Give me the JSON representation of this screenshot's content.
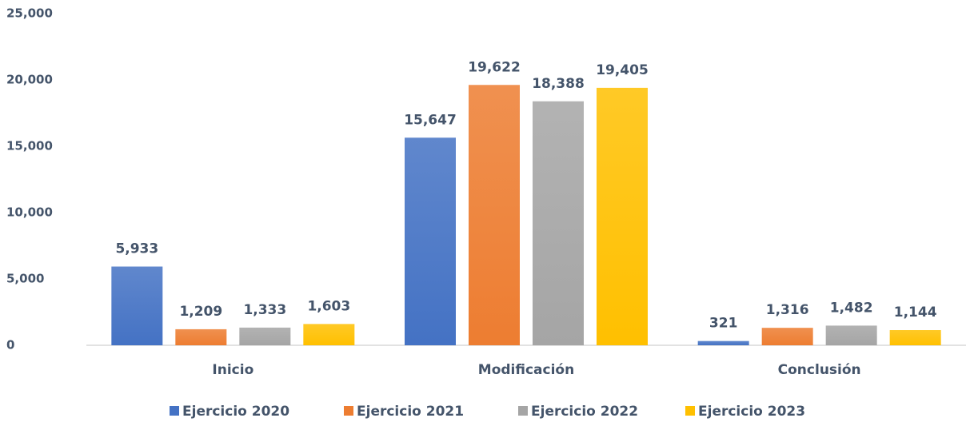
{
  "chart_data": {
    "type": "bar",
    "categories": [
      "Inicio",
      "Modificación",
      "Conclusión"
    ],
    "series": [
      {
        "name": "Ejercicio 2020",
        "color": "#4472c4",
        "values": [
          5933,
          15647,
          321
        ],
        "value_labels": [
          "5,933",
          "15,647",
          "321"
        ]
      },
      {
        "name": "Ejercicio 2021",
        "color": "#ed7d31",
        "values": [
          1209,
          19622,
          1316
        ],
        "value_labels": [
          "1,209",
          "19,622",
          "1,316"
        ]
      },
      {
        "name": "Ejercicio 2022",
        "color": "#a5a5a5",
        "values": [
          1333,
          18388,
          1482
        ],
        "value_labels": [
          "1,333",
          "18,388",
          "1,482"
        ]
      },
      {
        "name": "Ejercicio 2023",
        "color": "#ffc000",
        "values": [
          1603,
          19405,
          1144
        ],
        "value_labels": [
          "1,603",
          "19,405",
          "1,144"
        ]
      }
    ],
    "ylim": [
      0,
      25000
    ],
    "yticks": [
      0,
      {
        "value": 5000,
        "label": "5,000"
      },
      {
        "value": 10000,
        "label": "10,000"
      },
      {
        "value": 15000,
        "label": "15,000"
      },
      {
        "value": 20000,
        "label": "20,000"
      },
      {
        "value": 25000,
        "label": "25,000"
      }
    ],
    "legend": "bottom"
  }
}
